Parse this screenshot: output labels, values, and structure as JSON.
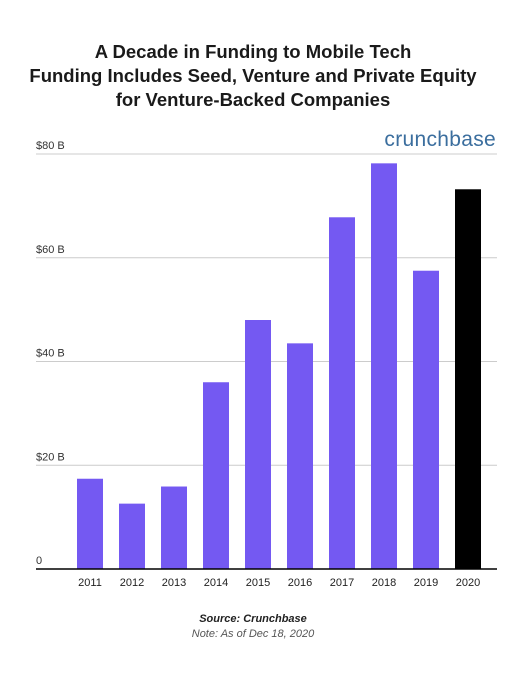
{
  "title_lines": [
    "A Decade in Funding to Mobile Tech",
    "Funding Includes Seed, Venture and Private Equity",
    "for Venture-Backed Companies"
  ],
  "brand": "crunchbase",
  "colors": {
    "bar": "#7459f2",
    "highlight": "#000000",
    "grid": "#cccccc",
    "axis": "#000000"
  },
  "footer": {
    "source": "Source: Crunchbase",
    "note": "Note: As of Dec 18, 2020"
  },
  "chart_data": {
    "type": "bar",
    "title": "A Decade in Funding to Mobile Tech",
    "subtitle": "Funding Includes Seed, Venture and Private Equity for Venture-Backed Companies",
    "categories": [
      "2011",
      "2012",
      "2013",
      "2014",
      "2015",
      "2016",
      "2017",
      "2018",
      "2019",
      "2020"
    ],
    "values": [
      17.4,
      12.6,
      15.9,
      36.0,
      48.0,
      43.5,
      67.8,
      78.2,
      57.5,
      73.2
    ],
    "highlight_category": "2020",
    "unit": "$B",
    "ylim": [
      0,
      80
    ],
    "yticks": [
      0,
      20,
      40,
      60,
      80
    ],
    "ytick_labels": [
      "0",
      "$20 B",
      "$40 B",
      "$60 B",
      "$80 B"
    ],
    "xlabel": "",
    "ylabel": "",
    "grid": true
  }
}
